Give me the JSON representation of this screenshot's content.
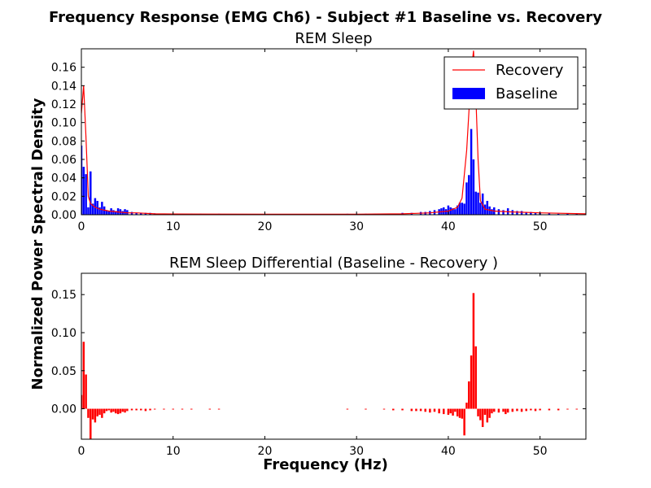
{
  "figure": {
    "suptitle": "Frequency Response (EMG Ch6) - Subject #1 Baseline vs. Recovery",
    "ylabel": "Normalized Power Spectral Density",
    "xlabel": "Frequency (Hz)"
  },
  "colors": {
    "baseline": "#0000ff",
    "recovery": "#ff0000",
    "differential": "#ff0000"
  },
  "chart_data": [
    {
      "type": "bar",
      "title": "REM Sleep",
      "xlim": [
        0,
        55
      ],
      "ylim": [
        0,
        0.18
      ],
      "xticks": [
        "0",
        "10",
        "20",
        "30",
        "40",
        "50"
      ],
      "xtick_values": [
        0,
        10,
        20,
        30,
        40,
        50
      ],
      "yticks": [
        "0.00",
        "0.02",
        "0.04",
        "0.06",
        "0.08",
        "0.10",
        "0.12",
        "0.14",
        "0.16"
      ],
      "ytick_values": [
        0,
        0.02,
        0.04,
        0.06,
        0.08,
        0.1,
        0.12,
        0.14,
        0.16
      ],
      "legend": {
        "position": "top-right",
        "entries": [
          {
            "label": "Recovery",
            "kind": "line"
          },
          {
            "label": "Baseline",
            "kind": "bar"
          }
        ]
      },
      "series": [
        {
          "name": "Baseline",
          "kind": "bar",
          "points": [
            [
              0.0,
              0.075
            ],
            [
              0.25,
              0.052
            ],
            [
              0.5,
              0.044
            ],
            [
              0.75,
              0.008
            ],
            [
              1.0,
              0.047
            ],
            [
              1.25,
              0.012
            ],
            [
              1.5,
              0.018
            ],
            [
              1.75,
              0.015
            ],
            [
              2.0,
              0.008
            ],
            [
              2.25,
              0.014
            ],
            [
              2.5,
              0.009
            ],
            [
              2.75,
              0.005
            ],
            [
              3.0,
              0.004
            ],
            [
              3.25,
              0.007
            ],
            [
              3.5,
              0.005
            ],
            [
              3.75,
              0.004
            ],
            [
              4.0,
              0.007
            ],
            [
              4.25,
              0.006
            ],
            [
              4.5,
              0.004
            ],
            [
              4.75,
              0.006
            ],
            [
              5.0,
              0.005
            ],
            [
              5.5,
              0.003
            ],
            [
              6.0,
              0.002
            ],
            [
              6.5,
              0.002
            ],
            [
              7.0,
              0.002
            ],
            [
              7.5,
              0.002
            ],
            [
              8.0,
              0.0015
            ],
            [
              8.5,
              0.001
            ],
            [
              9.0,
              0.001
            ],
            [
              10.0,
              0.001
            ],
            [
              11.0,
              0.001
            ],
            [
              12.0,
              0.001
            ],
            [
              13.0,
              0.001
            ],
            [
              15.0,
              0.001
            ],
            [
              29.0,
              0.001
            ],
            [
              30.0,
              0.001
            ],
            [
              31.0,
              0.001
            ],
            [
              32.0,
              0.001
            ],
            [
              33.0,
              0.001
            ],
            [
              34.0,
              0.001
            ],
            [
              35.0,
              0.002
            ],
            [
              36.0,
              0.002
            ],
            [
              37.0,
              0.003
            ],
            [
              37.5,
              0.003
            ],
            [
              38.0,
              0.004
            ],
            [
              38.5,
              0.005
            ],
            [
              39.0,
              0.006
            ],
            [
              39.25,
              0.007
            ],
            [
              39.5,
              0.008
            ],
            [
              39.75,
              0.006
            ],
            [
              40.0,
              0.01
            ],
            [
              40.25,
              0.008
            ],
            [
              40.5,
              0.007
            ],
            [
              40.75,
              0.006
            ],
            [
              41.0,
              0.01
            ],
            [
              41.25,
              0.013
            ],
            [
              41.5,
              0.013
            ],
            [
              41.75,
              0.012
            ],
            [
              42.0,
              0.035
            ],
            [
              42.25,
              0.043
            ],
            [
              42.5,
              0.093
            ],
            [
              42.75,
              0.06
            ],
            [
              43.0,
              0.025
            ],
            [
              43.25,
              0.024
            ],
            [
              43.5,
              0.013
            ],
            [
              43.75,
              0.023
            ],
            [
              44.0,
              0.011
            ],
            [
              44.25,
              0.015
            ],
            [
              44.5,
              0.009
            ],
            [
              44.75,
              0.006
            ],
            [
              45.0,
              0.008
            ],
            [
              45.5,
              0.006
            ],
            [
              46.0,
              0.005
            ],
            [
              46.5,
              0.007
            ],
            [
              47.0,
              0.005
            ],
            [
              47.5,
              0.004
            ],
            [
              48.0,
              0.004
            ],
            [
              48.5,
              0.003
            ],
            [
              49.0,
              0.003
            ],
            [
              49.5,
              0.002
            ],
            [
              50.0,
              0.002
            ],
            [
              51.0,
              0.002
            ],
            [
              52.0,
              0.001
            ],
            [
              53.0,
              0.001
            ],
            [
              54.0,
              0.001
            ],
            [
              55.0,
              0.001
            ]
          ]
        },
        {
          "name": "Recovery",
          "kind": "line",
          "points": [
            [
              0.0,
              0.11
            ],
            [
              0.25,
              0.14
            ],
            [
              0.5,
              0.085
            ],
            [
              0.75,
              0.02
            ],
            [
              1.0,
              0.012
            ],
            [
              1.5,
              0.008
            ],
            [
              2.0,
              0.006
            ],
            [
              3.0,
              0.004
            ],
            [
              4.0,
              0.003
            ],
            [
              5.0,
              0.002
            ],
            [
              6.0,
              0.002
            ],
            [
              8.0,
              0.001
            ],
            [
              10.0,
              0.0008
            ],
            [
              20.0,
              0.0005
            ],
            [
              30.0,
              0.0005
            ],
            [
              35.0,
              0.001
            ],
            [
              38.0,
              0.002
            ],
            [
              40.0,
              0.004
            ],
            [
              41.0,
              0.008
            ],
            [
              41.5,
              0.018
            ],
            [
              42.0,
              0.07
            ],
            [
              42.5,
              0.155
            ],
            [
              42.75,
              0.178
            ],
            [
              43.0,
              0.13
            ],
            [
              43.25,
              0.06
            ],
            [
              43.5,
              0.015
            ],
            [
              44.0,
              0.006
            ],
            [
              45.0,
              0.004
            ],
            [
              47.0,
              0.003
            ],
            [
              50.0,
              0.002
            ],
            [
              55.0,
              0.001
            ]
          ]
        }
      ]
    },
    {
      "type": "bar",
      "title": "REM Sleep Differential (Baseline - Recovery )",
      "xlim": [
        0,
        55
      ],
      "ylim": [
        -0.04,
        0.178
      ],
      "xticks": [
        "0",
        "10",
        "20",
        "30",
        "40",
        "50"
      ],
      "xtick_values": [
        0,
        10,
        20,
        30,
        40,
        50
      ],
      "yticks": [
        "0.00",
        "0.05",
        "0.10",
        "0.15"
      ],
      "ytick_values": [
        0,
        0.05,
        0.1,
        0.15
      ],
      "series": [
        {
          "name": "Differential",
          "kind": "bar",
          "points": [
            [
              0.0,
              0.018
            ],
            [
              0.25,
              0.088
            ],
            [
              0.5,
              0.045
            ],
            [
              0.75,
              -0.012
            ],
            [
              1.0,
              -0.04
            ],
            [
              1.25,
              -0.014
            ],
            [
              1.5,
              -0.018
            ],
            [
              1.75,
              -0.01
            ],
            [
              2.0,
              -0.008
            ],
            [
              2.25,
              -0.012
            ],
            [
              2.5,
              -0.006
            ],
            [
              2.75,
              -0.003
            ],
            [
              3.0,
              -0.002
            ],
            [
              3.25,
              -0.005
            ],
            [
              3.5,
              -0.004
            ],
            [
              3.75,
              -0.006
            ],
            [
              4.0,
              -0.007
            ],
            [
              4.25,
              -0.006
            ],
            [
              4.5,
              -0.004
            ],
            [
              4.75,
              -0.005
            ],
            [
              5.0,
              -0.003
            ],
            [
              5.5,
              -0.002
            ],
            [
              6.0,
              -0.002
            ],
            [
              6.5,
              -0.002
            ],
            [
              7.0,
              -0.003
            ],
            [
              7.5,
              -0.002
            ],
            [
              8.0,
              -0.001
            ],
            [
              9.0,
              -0.001
            ],
            [
              10.0,
              -0.001
            ],
            [
              11.0,
              -0.001
            ],
            [
              12.0,
              -0.001
            ],
            [
              14.0,
              -0.001
            ],
            [
              15.0,
              -0.001
            ],
            [
              29.0,
              -0.001
            ],
            [
              31.0,
              -0.001
            ],
            [
              33.0,
              -0.001
            ],
            [
              34.0,
              -0.002
            ],
            [
              35.0,
              -0.002
            ],
            [
              36.0,
              -0.003
            ],
            [
              36.5,
              -0.003
            ],
            [
              37.0,
              -0.003
            ],
            [
              37.5,
              -0.004
            ],
            [
              38.0,
              -0.005
            ],
            [
              38.5,
              -0.004
            ],
            [
              39.0,
              -0.006
            ],
            [
              39.5,
              -0.007
            ],
            [
              40.0,
              -0.008
            ],
            [
              40.25,
              -0.006
            ],
            [
              40.5,
              -0.009
            ],
            [
              40.75,
              -0.004
            ],
            [
              41.0,
              -0.01
            ],
            [
              41.25,
              -0.012
            ],
            [
              41.5,
              -0.013
            ],
            [
              41.75,
              -0.035
            ],
            [
              42.0,
              0.008
            ],
            [
              42.25,
              0.036
            ],
            [
              42.5,
              0.07
            ],
            [
              42.75,
              0.152
            ],
            [
              43.0,
              0.082
            ],
            [
              43.25,
              -0.01
            ],
            [
              43.5,
              -0.015
            ],
            [
              43.75,
              -0.024
            ],
            [
              44.0,
              -0.008
            ],
            [
              44.25,
              -0.018
            ],
            [
              44.5,
              -0.012
            ],
            [
              44.75,
              -0.006
            ],
            [
              45.0,
              -0.004
            ],
            [
              45.5,
              -0.005
            ],
            [
              46.0,
              -0.004
            ],
            [
              46.25,
              -0.007
            ],
            [
              46.5,
              -0.005
            ],
            [
              47.0,
              -0.004
            ],
            [
              47.5,
              -0.003
            ],
            [
              48.0,
              -0.004
            ],
            [
              48.5,
              -0.003
            ],
            [
              49.0,
              -0.002
            ],
            [
              49.5,
              -0.003
            ],
            [
              50.0,
              -0.002
            ],
            [
              51.0,
              -0.002
            ],
            [
              52.0,
              -0.002
            ],
            [
              53.0,
              -0.001
            ],
            [
              54.0,
              -0.001
            ]
          ]
        }
      ]
    }
  ]
}
